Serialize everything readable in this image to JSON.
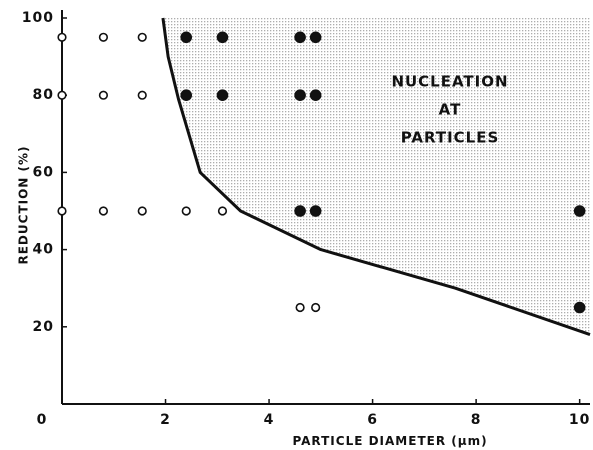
{
  "chart_data": {
    "type": "scatter",
    "xlabel": "PARTICLE DIAMETER   (µm)",
    "ylabel": "REDUCTION (%)",
    "annotation": [
      "NUCLEATION",
      "AT",
      "PARTICLES"
    ],
    "xlim": [
      0,
      10.2
    ],
    "ylim": [
      0,
      100
    ],
    "xticks": [
      0,
      2,
      4,
      6,
      8,
      10
    ],
    "yticks": [
      20,
      40,
      60,
      80,
      100
    ],
    "color": "#111111",
    "shade": "#d6d6d6",
    "series": [
      {
        "marker": "open",
        "x": [
          0,
          0.8,
          1.55,
          0,
          0.8,
          1.55,
          0,
          0.8,
          1.55,
          2.4,
          3.1,
          4.6,
          4.9
        ],
        "values": [
          95,
          95,
          95,
          80,
          80,
          80,
          50,
          50,
          50,
          50,
          50,
          25,
          25
        ]
      },
      {
        "marker": "filled",
        "x": [
          2.4,
          3.1,
          4.6,
          4.9,
          2.4,
          3.1,
          4.6,
          4.9,
          4.6,
          4.9,
          10,
          10
        ],
        "values": [
          95,
          95,
          95,
          95,
          80,
          80,
          80,
          80,
          50,
          50,
          50,
          25
        ]
      }
    ],
    "curve": {
      "x": [
        1.95,
        2.05,
        2.25,
        2.67,
        3.45,
        5,
        7.6,
        10.2
      ],
      "values": [
        100,
        90,
        79,
        60,
        50,
        40,
        30,
        18
      ]
    }
  }
}
